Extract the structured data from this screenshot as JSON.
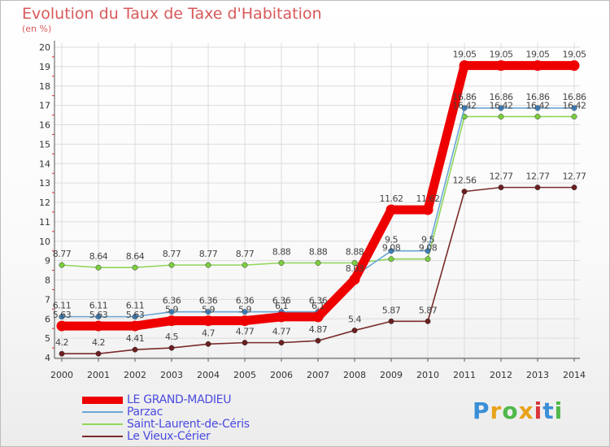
{
  "title": "Evolution du Taux de Taxe d'Habitation",
  "subtitle": "(en %)",
  "logo": {
    "letters": [
      "P",
      "r",
      "o",
      "x",
      "i",
      "t",
      "i"
    ],
    "colors": [
      "#3a8fd6",
      "#e8a21a",
      "#4fb84a",
      "#e8a21a",
      "#d9343a",
      "#3a8fd6",
      "#4fb84a"
    ]
  },
  "chart_data": {
    "type": "line",
    "x": [
      "2000",
      "2001",
      "2002",
      "2003",
      "2004",
      "2005",
      "2006",
      "2007",
      "2008",
      "2009",
      "2010",
      "2011",
      "2012",
      "2013",
      "2014"
    ],
    "ylim": [
      4,
      20
    ],
    "yticks": [
      "4",
      "5",
      "6",
      "7",
      "8",
      "9",
      "10",
      "11",
      "12",
      "13",
      "14",
      "15",
      "16",
      "17",
      "18",
      "19",
      "20"
    ],
    "grid": true,
    "legend_position": "bottom-left",
    "series": [
      {
        "name": "LE GRAND-MADIEU",
        "color": "#ee0000",
        "values": [
          5.63,
          5.63,
          5.63,
          5.9,
          5.9,
          5.9,
          6.1,
          6.1,
          8.03,
          11.62,
          11.62,
          19.05,
          19.05,
          19.05,
          19.05
        ],
        "labels": [
          "5.63",
          "5.63",
          "5.63",
          "5.9",
          "5.9",
          "5.9",
          "6.1",
          "6.1",
          "8.03",
          "11.62",
          "11.62",
          "19.05",
          "19.05",
          "19.05",
          "19.05"
        ]
      },
      {
        "name": "Parzac",
        "color": "#6aa6d6",
        "values": [
          6.11,
          6.11,
          6.11,
          6.36,
          6.36,
          6.36,
          6.36,
          6.36,
          8.2,
          9.5,
          9.5,
          16.86,
          16.86,
          16.86,
          16.86
        ],
        "labels": [
          "6.11",
          "6.11",
          "6.11",
          "6.36",
          "6.36",
          "6.36",
          "6.36",
          "6.36",
          "",
          "9.5",
          "9.5",
          "16.86",
          "16.86",
          "16.86",
          "16.86"
        ]
      },
      {
        "name": "Saint-Laurent-de-Céris",
        "color": "#8fd65a",
        "values": [
          8.77,
          8.64,
          8.64,
          8.77,
          8.77,
          8.77,
          8.88,
          8.88,
          8.88,
          9.08,
          9.08,
          16.42,
          16.42,
          16.42,
          16.42
        ],
        "labels": [
          "8.77",
          "8.64",
          "8.64",
          "8.77",
          "8.77",
          "8.77",
          "8.88",
          "8.88",
          "8.88",
          "9.08",
          "9.08",
          "16.42",
          "16.42",
          "16.42",
          "16.42"
        ]
      },
      {
        "name": "Le Vieux-Cérier",
        "color": "#7a2a2a",
        "values": [
          4.2,
          4.2,
          4.41,
          4.5,
          4.7,
          4.77,
          4.77,
          4.87,
          5.4,
          5.87,
          5.87,
          12.56,
          12.77,
          12.77,
          12.77
        ],
        "labels": [
          "4.2",
          "4.2",
          "4.41",
          "4.5",
          "4.7",
          "4.77",
          "4.77",
          "4.87",
          "5.4",
          "5.87",
          "5.87",
          "12.56",
          "12.77",
          "12.77",
          "12.77"
        ]
      }
    ]
  }
}
